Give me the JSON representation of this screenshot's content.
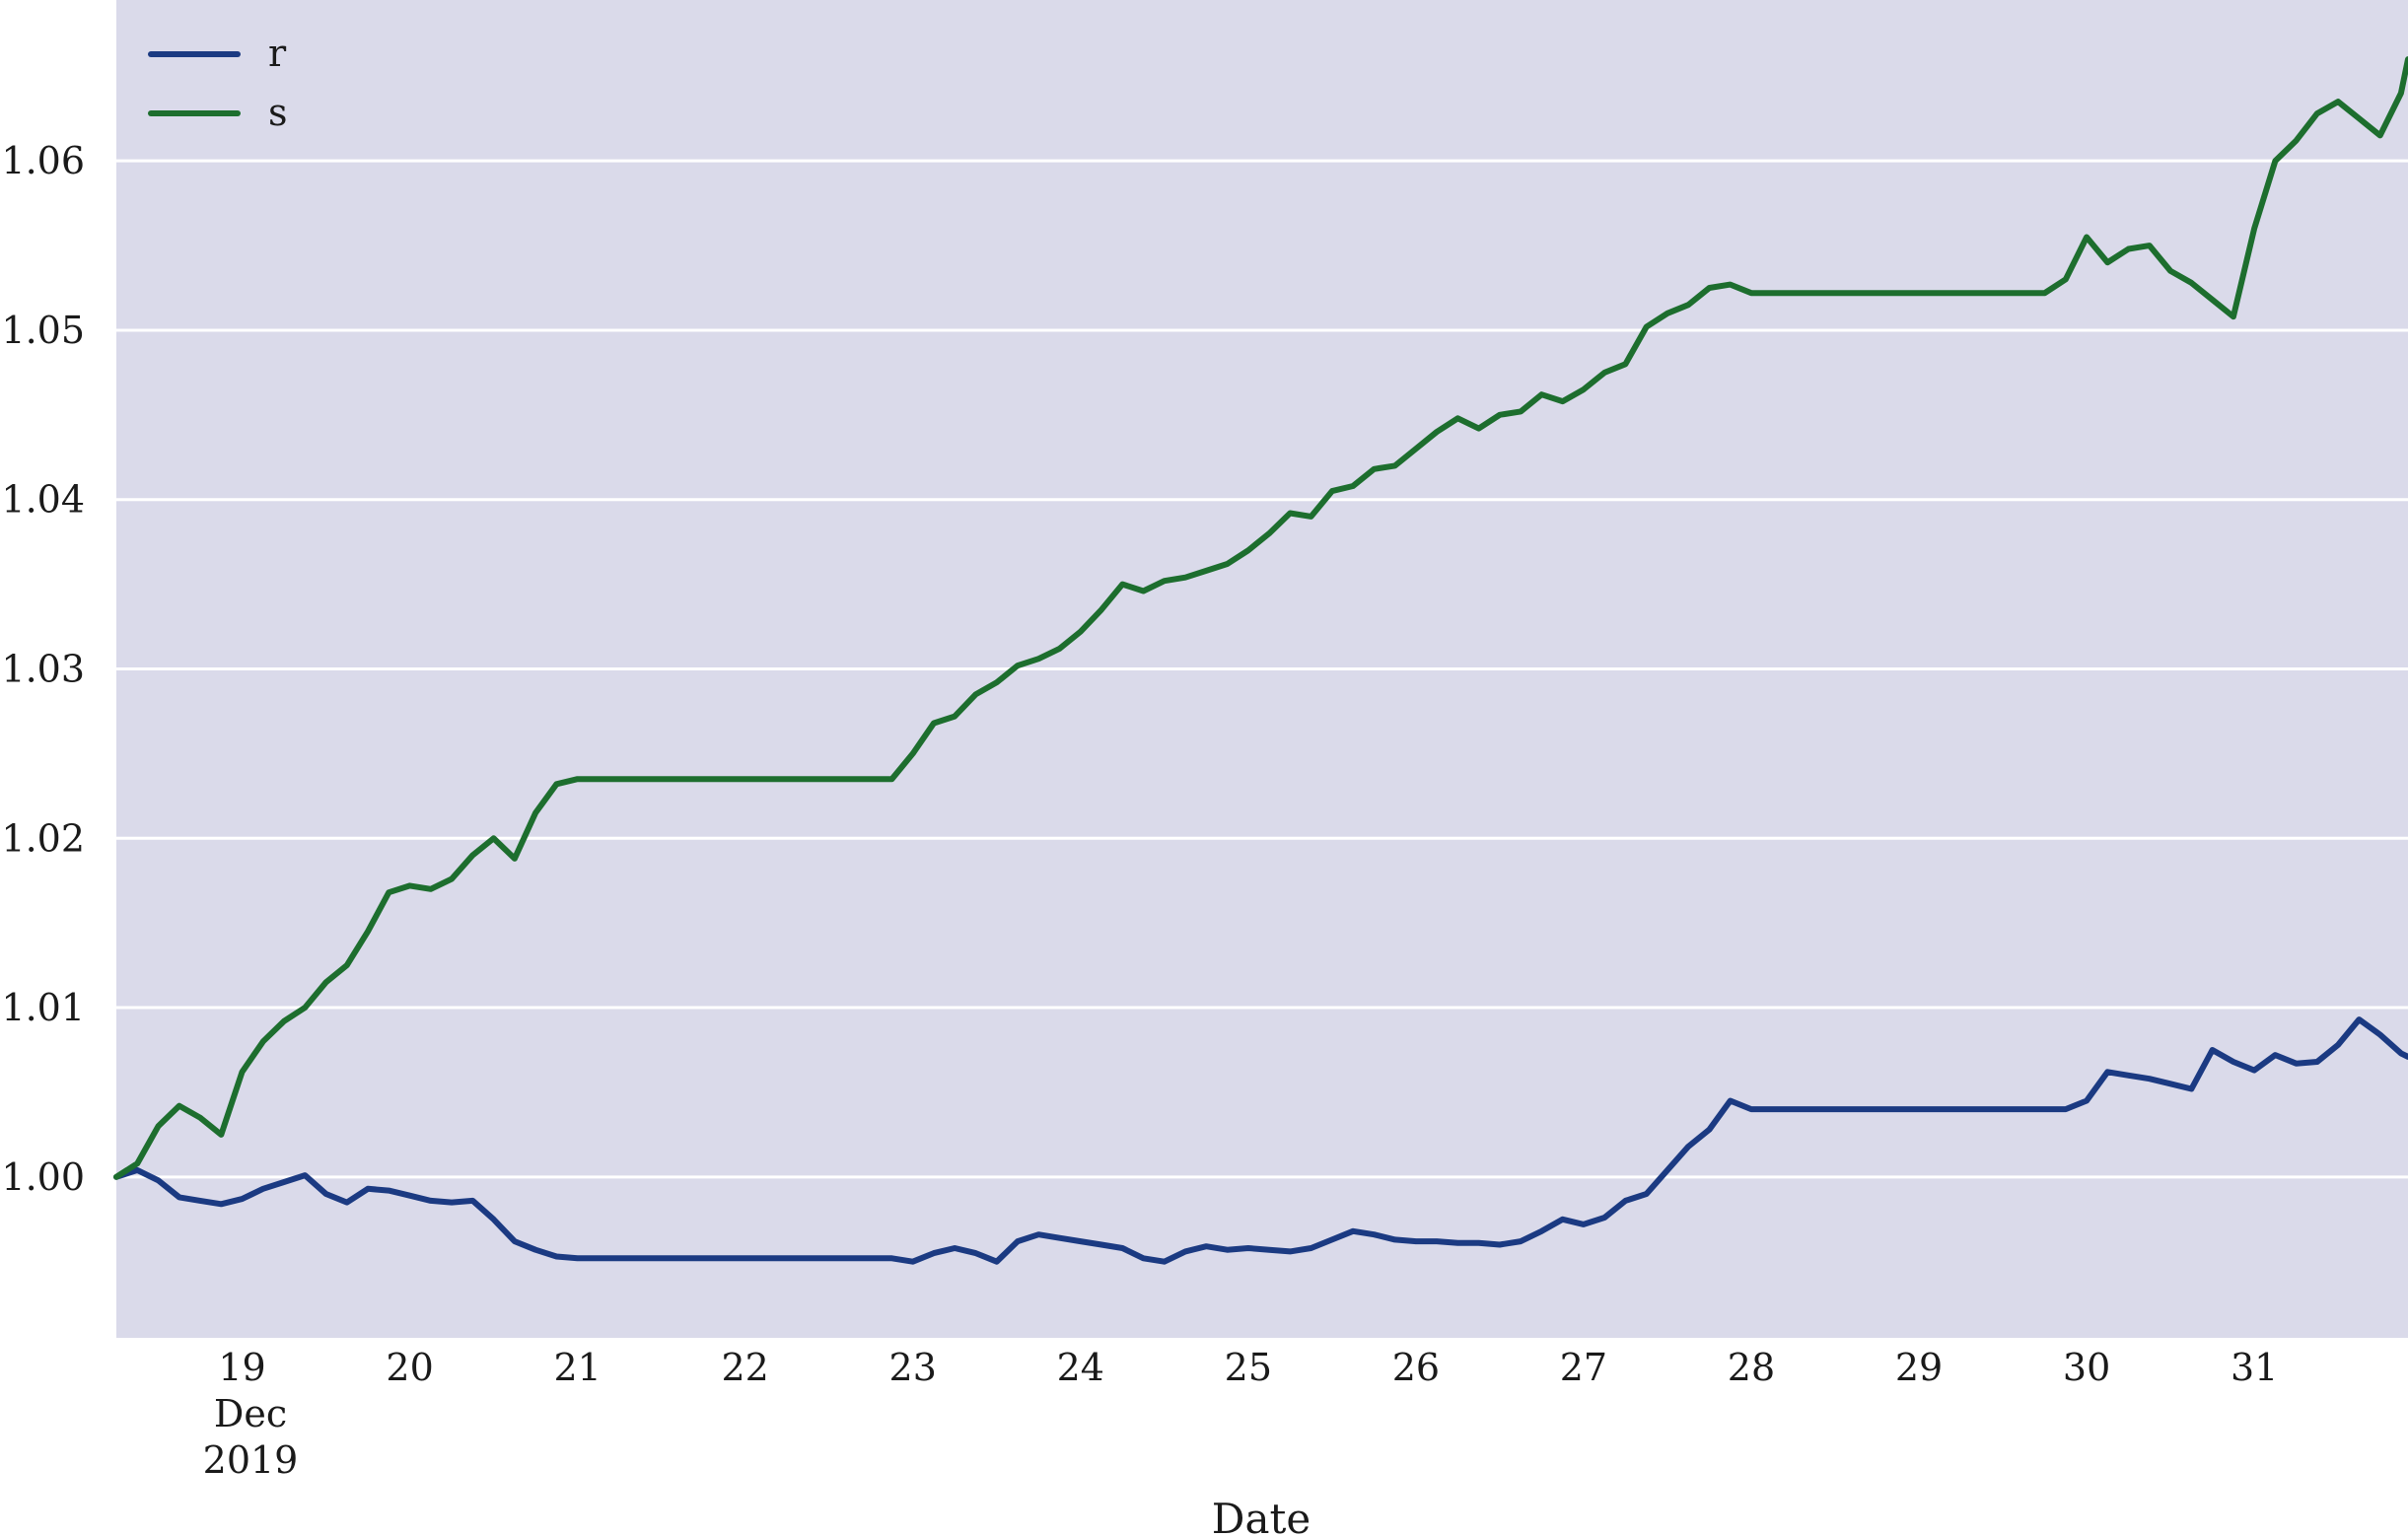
{
  "chart_data": {
    "type": "line",
    "title": "",
    "xlabel": "Date",
    "ylabel": "",
    "x_tick_labels": [
      "19",
      "20",
      "21",
      "22",
      "23",
      "24",
      "25",
      "26",
      "27",
      "28",
      "29",
      "30",
      "31"
    ],
    "x_tick_sublabels": [
      "Dec",
      "2019"
    ],
    "y_tick_labels": [
      "1.00",
      "1.01",
      "1.02",
      "1.03",
      "1.04",
      "1.05",
      "1.06"
    ],
    "y_ticks": [
      1.0,
      1.01,
      1.02,
      1.03,
      1.04,
      1.05,
      1.06
    ],
    "xlim": [
      "2019-12-18 06:00",
      "2019-12-31 22:00"
    ],
    "ylim": [
      0.9905,
      1.0695
    ],
    "grid": "horizontal",
    "legend_position": "top-left",
    "background_color": "#dadaea",
    "grid_color": "#ffffff",
    "series": [
      {
        "name": "r",
        "color": "#1b3a82",
        "points": [
          [
            "2019-12-18 06:00",
            1.0
          ],
          [
            "2019-12-18 09:00",
            1.0004
          ],
          [
            "2019-12-18 12:00",
            0.9998
          ],
          [
            "2019-12-18 15:00",
            0.9988
          ],
          [
            "2019-12-18 18:00",
            0.9986
          ],
          [
            "2019-12-18 21:00",
            0.9984
          ],
          [
            "2019-12-19 00:00",
            0.9987
          ],
          [
            "2019-12-19 03:00",
            0.9993
          ],
          [
            "2019-12-19 06:00",
            0.9997
          ],
          [
            "2019-12-19 09:00",
            1.0001
          ],
          [
            "2019-12-19 12:00",
            0.999
          ],
          [
            "2019-12-19 15:00",
            0.9985
          ],
          [
            "2019-12-19 18:00",
            0.9993
          ],
          [
            "2019-12-19 21:00",
            0.9992
          ],
          [
            "2019-12-20 00:00",
            0.9989
          ],
          [
            "2019-12-20 03:00",
            0.9986
          ],
          [
            "2019-12-20 06:00",
            0.9985
          ],
          [
            "2019-12-20 09:00",
            0.9986
          ],
          [
            "2019-12-20 12:00",
            0.9975
          ],
          [
            "2019-12-20 15:00",
            0.9962
          ],
          [
            "2019-12-20 18:00",
            0.9957
          ],
          [
            "2019-12-20 21:00",
            0.9953
          ],
          [
            "2019-12-21 00:00",
            0.9952
          ],
          [
            "2019-12-21 12:00",
            0.9952
          ],
          [
            "2019-12-22 00:00",
            0.9952
          ],
          [
            "2019-12-22 12:00",
            0.9952
          ],
          [
            "2019-12-22 21:00",
            0.9952
          ],
          [
            "2019-12-23 00:00",
            0.995
          ],
          [
            "2019-12-23 03:00",
            0.9955
          ],
          [
            "2019-12-23 06:00",
            0.9958
          ],
          [
            "2019-12-23 09:00",
            0.9955
          ],
          [
            "2019-12-23 12:00",
            0.995
          ],
          [
            "2019-12-23 15:00",
            0.9962
          ],
          [
            "2019-12-23 18:00",
            0.9966
          ],
          [
            "2019-12-23 21:00",
            0.9964
          ],
          [
            "2019-12-24 00:00",
            0.9962
          ],
          [
            "2019-12-24 03:00",
            0.996
          ],
          [
            "2019-12-24 06:00",
            0.9958
          ],
          [
            "2019-12-24 09:00",
            0.9952
          ],
          [
            "2019-12-24 12:00",
            0.995
          ],
          [
            "2019-12-24 15:00",
            0.9956
          ],
          [
            "2019-12-24 18:00",
            0.9959
          ],
          [
            "2019-12-24 21:00",
            0.9957
          ],
          [
            "2019-12-25 00:00",
            0.9958
          ],
          [
            "2019-12-25 03:00",
            0.9957
          ],
          [
            "2019-12-25 06:00",
            0.9956
          ],
          [
            "2019-12-25 09:00",
            0.9958
          ],
          [
            "2019-12-25 12:00",
            0.9963
          ],
          [
            "2019-12-25 15:00",
            0.9968
          ],
          [
            "2019-12-25 18:00",
            0.9966
          ],
          [
            "2019-12-25 21:00",
            0.9963
          ],
          [
            "2019-12-26 00:00",
            0.9962
          ],
          [
            "2019-12-26 03:00",
            0.9962
          ],
          [
            "2019-12-26 06:00",
            0.9961
          ],
          [
            "2019-12-26 09:00",
            0.9961
          ],
          [
            "2019-12-26 12:00",
            0.996
          ],
          [
            "2019-12-26 15:00",
            0.9962
          ],
          [
            "2019-12-26 18:00",
            0.9968
          ],
          [
            "2019-12-26 21:00",
            0.9975
          ],
          [
            "2019-12-27 00:00",
            0.9972
          ],
          [
            "2019-12-27 03:00",
            0.9976
          ],
          [
            "2019-12-27 06:00",
            0.9986
          ],
          [
            "2019-12-27 09:00",
            0.999
          ],
          [
            "2019-12-27 12:00",
            1.0004
          ],
          [
            "2019-12-27 15:00",
            1.0018
          ],
          [
            "2019-12-27 18:00",
            1.0028
          ],
          [
            "2019-12-27 21:00",
            1.0045
          ],
          [
            "2019-12-28 00:00",
            1.004
          ],
          [
            "2019-12-28 12:00",
            1.004
          ],
          [
            "2019-12-29 00:00",
            1.004
          ],
          [
            "2019-12-29 12:00",
            1.004
          ],
          [
            "2019-12-29 18:00",
            1.004
          ],
          [
            "2019-12-29 21:00",
            1.004
          ],
          [
            "2019-12-30 00:00",
            1.0045
          ],
          [
            "2019-12-30 03:00",
            1.0062
          ],
          [
            "2019-12-30 06:00",
            1.006
          ],
          [
            "2019-12-30 09:00",
            1.0058
          ],
          [
            "2019-12-30 12:00",
            1.0055
          ],
          [
            "2019-12-30 15:00",
            1.0052
          ],
          [
            "2019-12-30 18:00",
            1.0075
          ],
          [
            "2019-12-30 21:00",
            1.0068
          ],
          [
            "2019-12-31 00:00",
            1.0063
          ],
          [
            "2019-12-31 03:00",
            1.0072
          ],
          [
            "2019-12-31 06:00",
            1.0067
          ],
          [
            "2019-12-31 09:00",
            1.0068
          ],
          [
            "2019-12-31 12:00",
            1.0078
          ],
          [
            "2019-12-31 15:00",
            1.0093
          ],
          [
            "2019-12-31 18:00",
            1.0084
          ],
          [
            "2019-12-31 21:00",
            1.0073
          ],
          [
            "2019-12-31 22:00",
            1.0071
          ]
        ]
      },
      {
        "name": "s",
        "color": "#1d6e2e",
        "points": [
          [
            "2019-12-18 06:00",
            1.0
          ],
          [
            "2019-12-18 09:00",
            1.0008
          ],
          [
            "2019-12-18 12:00",
            1.003
          ],
          [
            "2019-12-18 15:00",
            1.0042
          ],
          [
            "2019-12-18 18:00",
            1.0035
          ],
          [
            "2019-12-18 21:00",
            1.0025
          ],
          [
            "2019-12-19 00:00",
            1.0062
          ],
          [
            "2019-12-19 03:00",
            1.008
          ],
          [
            "2019-12-19 06:00",
            1.0092
          ],
          [
            "2019-12-19 09:00",
            1.01
          ],
          [
            "2019-12-19 12:00",
            1.0115
          ],
          [
            "2019-12-19 15:00",
            1.0125
          ],
          [
            "2019-12-19 18:00",
            1.0145
          ],
          [
            "2019-12-19 21:00",
            1.0168
          ],
          [
            "2019-12-20 00:00",
            1.0172
          ],
          [
            "2019-12-20 03:00",
            1.017
          ],
          [
            "2019-12-20 06:00",
            1.0176
          ],
          [
            "2019-12-20 09:00",
            1.019
          ],
          [
            "2019-12-20 12:00",
            1.02
          ],
          [
            "2019-12-20 15:00",
            1.0188
          ],
          [
            "2019-12-20 18:00",
            1.0215
          ],
          [
            "2019-12-20 21:00",
            1.0232
          ],
          [
            "2019-12-21 00:00",
            1.0235
          ],
          [
            "2019-12-21 12:00",
            1.0235
          ],
          [
            "2019-12-22 00:00",
            1.0235
          ],
          [
            "2019-12-22 12:00",
            1.0235
          ],
          [
            "2019-12-22 21:00",
            1.0235
          ],
          [
            "2019-12-23 00:00",
            1.025
          ],
          [
            "2019-12-23 03:00",
            1.0268
          ],
          [
            "2019-12-23 06:00",
            1.0272
          ],
          [
            "2019-12-23 09:00",
            1.0285
          ],
          [
            "2019-12-23 12:00",
            1.0292
          ],
          [
            "2019-12-23 15:00",
            1.0302
          ],
          [
            "2019-12-23 18:00",
            1.0306
          ],
          [
            "2019-12-23 21:00",
            1.0312
          ],
          [
            "2019-12-24 00:00",
            1.0322
          ],
          [
            "2019-12-24 03:00",
            1.0335
          ],
          [
            "2019-12-24 06:00",
            1.035
          ],
          [
            "2019-12-24 09:00",
            1.0346
          ],
          [
            "2019-12-24 12:00",
            1.0352
          ],
          [
            "2019-12-24 15:00",
            1.0354
          ],
          [
            "2019-12-24 18:00",
            1.0358
          ],
          [
            "2019-12-24 21:00",
            1.0362
          ],
          [
            "2019-12-25 00:00",
            1.037
          ],
          [
            "2019-12-25 03:00",
            1.038
          ],
          [
            "2019-12-25 06:00",
            1.0392
          ],
          [
            "2019-12-25 09:00",
            1.039
          ],
          [
            "2019-12-25 12:00",
            1.0405
          ],
          [
            "2019-12-25 15:00",
            1.0408
          ],
          [
            "2019-12-25 18:00",
            1.0418
          ],
          [
            "2019-12-25 21:00",
            1.042
          ],
          [
            "2019-12-26 00:00",
            1.043
          ],
          [
            "2019-12-26 03:00",
            1.044
          ],
          [
            "2019-12-26 06:00",
            1.0448
          ],
          [
            "2019-12-26 09:00",
            1.0442
          ],
          [
            "2019-12-26 12:00",
            1.045
          ],
          [
            "2019-12-26 15:00",
            1.0452
          ],
          [
            "2019-12-26 18:00",
            1.0462
          ],
          [
            "2019-12-26 21:00",
            1.0458
          ],
          [
            "2019-12-27 00:00",
            1.0465
          ],
          [
            "2019-12-27 03:00",
            1.0475
          ],
          [
            "2019-12-27 06:00",
            1.048
          ],
          [
            "2019-12-27 09:00",
            1.0502
          ],
          [
            "2019-12-27 12:00",
            1.051
          ],
          [
            "2019-12-27 15:00",
            1.0515
          ],
          [
            "2019-12-27 18:00",
            1.0525
          ],
          [
            "2019-12-27 21:00",
            1.0527
          ],
          [
            "2019-12-28 00:00",
            1.0522
          ],
          [
            "2019-12-28 12:00",
            1.0522
          ],
          [
            "2019-12-29 00:00",
            1.0522
          ],
          [
            "2019-12-29 12:00",
            1.0522
          ],
          [
            "2019-12-29 18:00",
            1.0522
          ],
          [
            "2019-12-29 21:00",
            1.053
          ],
          [
            "2019-12-30 00:00",
            1.0555
          ],
          [
            "2019-12-30 03:00",
            1.054
          ],
          [
            "2019-12-30 06:00",
            1.0548
          ],
          [
            "2019-12-30 09:00",
            1.055
          ],
          [
            "2019-12-30 12:00",
            1.0535
          ],
          [
            "2019-12-30 15:00",
            1.0528
          ],
          [
            "2019-12-30 18:00",
            1.0518
          ],
          [
            "2019-12-30 21:00",
            1.0508
          ],
          [
            "2019-12-31 00:00",
            1.056
          ],
          [
            "2019-12-31 03:00",
            1.06
          ],
          [
            "2019-12-31 06:00",
            1.0612
          ],
          [
            "2019-12-31 09:00",
            1.0628
          ],
          [
            "2019-12-31 12:00",
            1.0635
          ],
          [
            "2019-12-31 15:00",
            1.0625
          ],
          [
            "2019-12-31 18:00",
            1.0615
          ],
          [
            "2019-12-31 21:00",
            1.064
          ],
          [
            "2019-12-31 22:00",
            1.066
          ]
        ]
      }
    ]
  }
}
